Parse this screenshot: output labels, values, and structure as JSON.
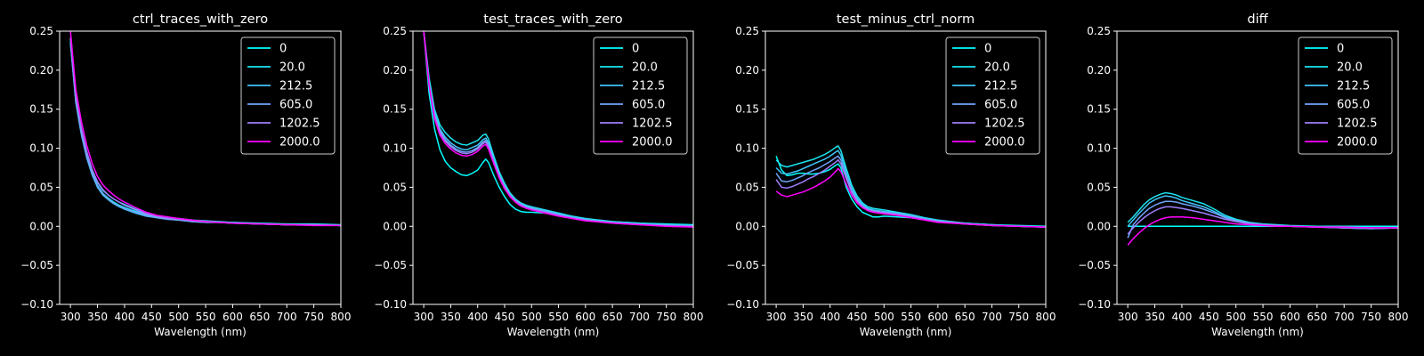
{
  "chart_data": [
    {
      "type": "line",
      "title": "ctrl_traces_with_zero",
      "xlabel": "Wavelength (nm)",
      "ylabel": "",
      "xlim": [
        280,
        800
      ],
      "ylim": [
        -0.1,
        0.25
      ],
      "xticks": [
        "300",
        "350",
        "400",
        "450",
        "500",
        "550",
        "600",
        "650",
        "700",
        "750",
        "800"
      ],
      "yticks": [
        "−0.10",
        "−0.05",
        "0.00",
        "0.05",
        "0.10",
        "0.15",
        "0.20",
        "0.25"
      ],
      "grid": false,
      "legend_position": "top-right",
      "x": [
        300,
        310,
        320,
        330,
        340,
        350,
        360,
        370,
        380,
        390,
        400,
        420,
        440,
        460,
        480,
        500,
        525,
        550,
        575,
        600,
        650,
        700,
        750,
        800
      ],
      "series": [
        {
          "name": "0",
          "color": "#00ffff",
          "values": [
            0.235,
            0.16,
            0.12,
            0.09,
            0.068,
            0.052,
            0.042,
            0.036,
            0.031,
            0.027,
            0.024,
            0.019,
            0.015,
            0.012,
            0.01,
            0.009,
            0.007,
            0.006,
            0.005,
            0.005,
            0.003,
            0.002,
            0.002,
            0.001
          ]
        },
        {
          "name": "20.0",
          "color": "#1ae5f2",
          "values": [
            0.24,
            0.165,
            0.125,
            0.095,
            0.072,
            0.056,
            0.046,
            0.04,
            0.035,
            0.031,
            0.028,
            0.022,
            0.017,
            0.013,
            0.011,
            0.01,
            0.008,
            0.007,
            0.006,
            0.005,
            0.004,
            0.003,
            0.003,
            0.002
          ]
        },
        {
          "name": "212.5",
          "color": "#3fc5f8",
          "values": [
            0.235,
            0.158,
            0.118,
            0.088,
            0.066,
            0.05,
            0.04,
            0.034,
            0.029,
            0.025,
            0.022,
            0.017,
            0.013,
            0.011,
            0.009,
            0.008,
            0.006,
            0.005,
            0.005,
            0.004,
            0.003,
            0.002,
            0.002,
            0.001
          ]
        },
        {
          "name": "605.0",
          "color": "#6fa4fb",
          "values": [
            0.238,
            0.16,
            0.12,
            0.09,
            0.068,
            0.052,
            0.042,
            0.035,
            0.03,
            0.026,
            0.023,
            0.018,
            0.014,
            0.011,
            0.009,
            0.008,
            0.006,
            0.005,
            0.005,
            0.004,
            0.003,
            0.002,
            0.002,
            0.001
          ]
        },
        {
          "name": "1202.5",
          "color": "#a07ffc",
          "values": [
            0.242,
            0.166,
            0.126,
            0.096,
            0.073,
            0.057,
            0.047,
            0.04,
            0.035,
            0.031,
            0.027,
            0.021,
            0.016,
            0.013,
            0.01,
            0.009,
            0.007,
            0.006,
            0.005,
            0.004,
            0.003,
            0.002,
            0.002,
            0.001
          ]
        },
        {
          "name": "2000.0",
          "color": "#ff00ff",
          "values": [
            0.25,
            0.175,
            0.135,
            0.104,
            0.081,
            0.064,
            0.053,
            0.046,
            0.04,
            0.035,
            0.031,
            0.024,
            0.018,
            0.014,
            0.012,
            0.01,
            0.008,
            0.006,
            0.005,
            0.004,
            0.003,
            0.002,
            0.001,
            0.001
          ]
        }
      ]
    },
    {
      "type": "line",
      "title": "test_traces_with_zero",
      "xlabel": "Wavelength (nm)",
      "ylabel": "",
      "xlim": [
        280,
        800
      ],
      "ylim": [
        -0.1,
        0.25
      ],
      "xticks": [
        "300",
        "350",
        "400",
        "450",
        "500",
        "550",
        "600",
        "650",
        "700",
        "750",
        "800"
      ],
      "yticks": [
        "−0.10",
        "−0.05",
        "0.00",
        "0.05",
        "0.10",
        "0.15",
        "0.20",
        "0.25"
      ],
      "grid": false,
      "legend_position": "top-right",
      "x": [
        300,
        310,
        320,
        330,
        340,
        350,
        360,
        370,
        380,
        390,
        400,
        410,
        415,
        420,
        430,
        440,
        450,
        460,
        470,
        480,
        490,
        500,
        525,
        550,
        575,
        600,
        650,
        700,
        750,
        800
      ],
      "series": [
        {
          "name": "0",
          "color": "#00ffff",
          "values": [
            0.25,
            0.17,
            0.125,
            0.098,
            0.083,
            0.075,
            0.07,
            0.066,
            0.065,
            0.068,
            0.072,
            0.082,
            0.086,
            0.082,
            0.065,
            0.05,
            0.038,
            0.028,
            0.022,
            0.019,
            0.018,
            0.018,
            0.017,
            0.015,
            0.012,
            0.009,
            0.006,
            0.004,
            0.003,
            0.002
          ]
        },
        {
          "name": "20.0",
          "color": "#1ae5f2",
          "values": [
            0.25,
            0.19,
            0.15,
            0.13,
            0.12,
            0.113,
            0.108,
            0.105,
            0.104,
            0.107,
            0.11,
            0.117,
            0.118,
            0.112,
            0.09,
            0.07,
            0.055,
            0.043,
            0.035,
            0.03,
            0.027,
            0.025,
            0.021,
            0.017,
            0.013,
            0.01,
            0.006,
            0.004,
            0.002,
            0.001
          ]
        },
        {
          "name": "212.5",
          "color": "#3fc5f8",
          "values": [
            0.25,
            0.185,
            0.146,
            0.125,
            0.114,
            0.107,
            0.102,
            0.099,
            0.098,
            0.101,
            0.104,
            0.111,
            0.113,
            0.107,
            0.086,
            0.067,
            0.052,
            0.041,
            0.034,
            0.029,
            0.026,
            0.024,
            0.02,
            0.016,
            0.012,
            0.009,
            0.005,
            0.003,
            0.002,
            0.001
          ]
        },
        {
          "name": "605.0",
          "color": "#6fa4fb",
          "values": [
            0.25,
            0.183,
            0.143,
            0.122,
            0.111,
            0.104,
            0.099,
            0.096,
            0.095,
            0.097,
            0.101,
            0.108,
            0.11,
            0.104,
            0.084,
            0.065,
            0.051,
            0.04,
            0.033,
            0.028,
            0.025,
            0.023,
            0.019,
            0.015,
            0.011,
            0.008,
            0.005,
            0.003,
            0.001,
            0.0
          ]
        },
        {
          "name": "1202.5",
          "color": "#a07ffc",
          "values": [
            0.25,
            0.182,
            0.141,
            0.12,
            0.109,
            0.102,
            0.097,
            0.094,
            0.093,
            0.095,
            0.099,
            0.106,
            0.108,
            0.102,
            0.082,
            0.064,
            0.05,
            0.039,
            0.032,
            0.027,
            0.024,
            0.022,
            0.018,
            0.014,
            0.011,
            0.008,
            0.004,
            0.002,
            0.001,
            0.0
          ]
        },
        {
          "name": "2000.0",
          "color": "#ff00ff",
          "values": [
            0.25,
            0.18,
            0.138,
            0.117,
            0.106,
            0.099,
            0.094,
            0.091,
            0.09,
            0.092,
            0.096,
            0.103,
            0.105,
            0.099,
            0.08,
            0.062,
            0.048,
            0.038,
            0.031,
            0.026,
            0.023,
            0.021,
            0.017,
            0.013,
            0.01,
            0.007,
            0.004,
            0.002,
            0.0,
            -0.001
          ]
        }
      ]
    },
    {
      "type": "line",
      "title": "test_minus_ctrl_norm",
      "xlabel": "Wavelength (nm)",
      "ylabel": "",
      "xlim": [
        280,
        800
      ],
      "ylim": [
        -0.1,
        0.25
      ],
      "xticks": [
        "300",
        "350",
        "400",
        "450",
        "500",
        "550",
        "600",
        "650",
        "700",
        "750",
        "800"
      ],
      "yticks": [
        "−0.10",
        "−0.05",
        "0.00",
        "0.05",
        "0.10",
        "0.15",
        "0.20",
        "0.25"
      ],
      "grid": false,
      "legend_position": "top-right",
      "x": [
        300,
        310,
        320,
        330,
        340,
        350,
        360,
        370,
        380,
        390,
        400,
        410,
        415,
        420,
        430,
        440,
        450,
        460,
        470,
        480,
        490,
        500,
        525,
        550,
        575,
        600,
        650,
        700,
        750,
        800
      ],
      "series": [
        {
          "name": "0",
          "color": "#00ffff",
          "values": [
            0.09,
            0.072,
            0.065,
            0.066,
            0.068,
            0.068,
            0.067,
            0.067,
            0.068,
            0.07,
            0.073,
            0.078,
            0.08,
            0.075,
            0.05,
            0.035,
            0.025,
            0.018,
            0.015,
            0.012,
            0.012,
            0.013,
            0.012,
            0.011,
            0.009,
            0.007,
            0.004,
            0.002,
            0.001,
            0.0
          ]
        },
        {
          "name": "20.0",
          "color": "#1ae5f2",
          "values": [
            0.085,
            0.078,
            0.076,
            0.078,
            0.08,
            0.082,
            0.084,
            0.086,
            0.089,
            0.092,
            0.096,
            0.101,
            0.103,
            0.097,
            0.074,
            0.053,
            0.039,
            0.03,
            0.025,
            0.023,
            0.022,
            0.021,
            0.018,
            0.015,
            0.011,
            0.008,
            0.004,
            0.002,
            0.0,
            -0.001
          ]
        },
        {
          "name": "212.5",
          "color": "#3fc5f8",
          "values": [
            0.075,
            0.068,
            0.067,
            0.069,
            0.071,
            0.074,
            0.077,
            0.08,
            0.083,
            0.086,
            0.09,
            0.095,
            0.097,
            0.091,
            0.069,
            0.049,
            0.036,
            0.028,
            0.023,
            0.021,
            0.02,
            0.019,
            0.017,
            0.014,
            0.01,
            0.007,
            0.004,
            0.002,
            0.0,
            -0.001
          ]
        },
        {
          "name": "605.0",
          "color": "#6fa4fb",
          "values": [
            0.068,
            0.058,
            0.057,
            0.059,
            0.062,
            0.065,
            0.069,
            0.072,
            0.075,
            0.079,
            0.083,
            0.088,
            0.09,
            0.085,
            0.064,
            0.046,
            0.034,
            0.026,
            0.022,
            0.02,
            0.019,
            0.018,
            0.016,
            0.013,
            0.009,
            0.007,
            0.003,
            0.001,
            0.0,
            -0.001
          ]
        },
        {
          "name": "1202.5",
          "color": "#a07ffc",
          "values": [
            0.06,
            0.05,
            0.049,
            0.051,
            0.054,
            0.057,
            0.061,
            0.064,
            0.068,
            0.072,
            0.077,
            0.082,
            0.085,
            0.08,
            0.061,
            0.044,
            0.032,
            0.025,
            0.021,
            0.019,
            0.018,
            0.017,
            0.015,
            0.012,
            0.009,
            0.006,
            0.003,
            0.001,
            0.0,
            -0.001
          ]
        },
        {
          "name": "2000.0",
          "color": "#ff00ff",
          "values": [
            0.045,
            0.04,
            0.038,
            0.04,
            0.042,
            0.044,
            0.047,
            0.05,
            0.054,
            0.058,
            0.063,
            0.07,
            0.074,
            0.07,
            0.054,
            0.04,
            0.03,
            0.024,
            0.02,
            0.018,
            0.017,
            0.016,
            0.014,
            0.011,
            0.008,
            0.005,
            0.003,
            0.001,
            0.0,
            -0.001
          ]
        }
      ]
    },
    {
      "type": "line",
      "title": "diff",
      "xlabel": "Wavelength (nm)",
      "ylabel": "",
      "xlim": [
        280,
        800
      ],
      "ylim": [
        -0.1,
        0.25
      ],
      "xticks": [
        "300",
        "350",
        "400",
        "450",
        "500",
        "550",
        "600",
        "650",
        "700",
        "750",
        "800"
      ],
      "yticks": [
        "−0.10",
        "−0.05",
        "0.00",
        "0.05",
        "0.10",
        "0.15",
        "0.20",
        "0.25"
      ],
      "grid": false,
      "legend_position": "top-right",
      "x": [
        300,
        310,
        320,
        330,
        340,
        350,
        360,
        370,
        380,
        390,
        400,
        420,
        440,
        460,
        480,
        500,
        525,
        550,
        575,
        600,
        650,
        700,
        750,
        800
      ],
      "series": [
        {
          "name": "0",
          "color": "#00ffff",
          "values": [
            0,
            0,
            0,
            0,
            0,
            0,
            0,
            0,
            0,
            0,
            0,
            0,
            0,
            0,
            0,
            0,
            0,
            0,
            0,
            0,
            0,
            0,
            0,
            0
          ]
        },
        {
          "name": "20.0",
          "color": "#1ae5f2",
          "values": [
            0.005,
            0.012,
            0.02,
            0.028,
            0.034,
            0.038,
            0.041,
            0.043,
            0.042,
            0.04,
            0.037,
            0.033,
            0.029,
            0.022,
            0.014,
            0.009,
            0.005,
            0.003,
            0.002,
            0.001,
            0.0,
            -0.002,
            -0.003,
            -0.002
          ]
        },
        {
          "name": "212.5",
          "color": "#3fc5f8",
          "values": [
            0.0,
            0.008,
            0.016,
            0.023,
            0.03,
            0.034,
            0.037,
            0.039,
            0.038,
            0.036,
            0.033,
            0.029,
            0.025,
            0.019,
            0.012,
            0.008,
            0.004,
            0.002,
            0.001,
            0.0,
            -0.001,
            -0.002,
            -0.003,
            -0.002
          ]
        },
        {
          "name": "605.0",
          "color": "#6fa4fb",
          "values": [
            -0.015,
            0.002,
            0.01,
            0.017,
            0.023,
            0.027,
            0.03,
            0.032,
            0.032,
            0.031,
            0.029,
            0.026,
            0.022,
            0.017,
            0.011,
            0.007,
            0.004,
            0.002,
            0.001,
            0.0,
            -0.001,
            -0.002,
            -0.003,
            -0.002
          ]
        },
        {
          "name": "1202.5",
          "color": "#a07ffc",
          "values": [
            -0.01,
            -0.002,
            0.005,
            0.011,
            0.016,
            0.02,
            0.023,
            0.025,
            0.025,
            0.024,
            0.023,
            0.02,
            0.017,
            0.013,
            0.009,
            0.006,
            0.003,
            0.002,
            0.001,
            0.0,
            -0.001,
            -0.002,
            -0.002,
            -0.002
          ]
        },
        {
          "name": "2000.0",
          "color": "#ff00ff",
          "values": [
            -0.024,
            -0.016,
            -0.009,
            -0.003,
            0.002,
            0.006,
            0.009,
            0.011,
            0.012,
            0.012,
            0.012,
            0.011,
            0.009,
            0.007,
            0.005,
            0.003,
            0.002,
            0.001,
            0.0,
            0.0,
            -0.001,
            -0.001,
            -0.002,
            -0.002
          ]
        }
      ]
    }
  ]
}
